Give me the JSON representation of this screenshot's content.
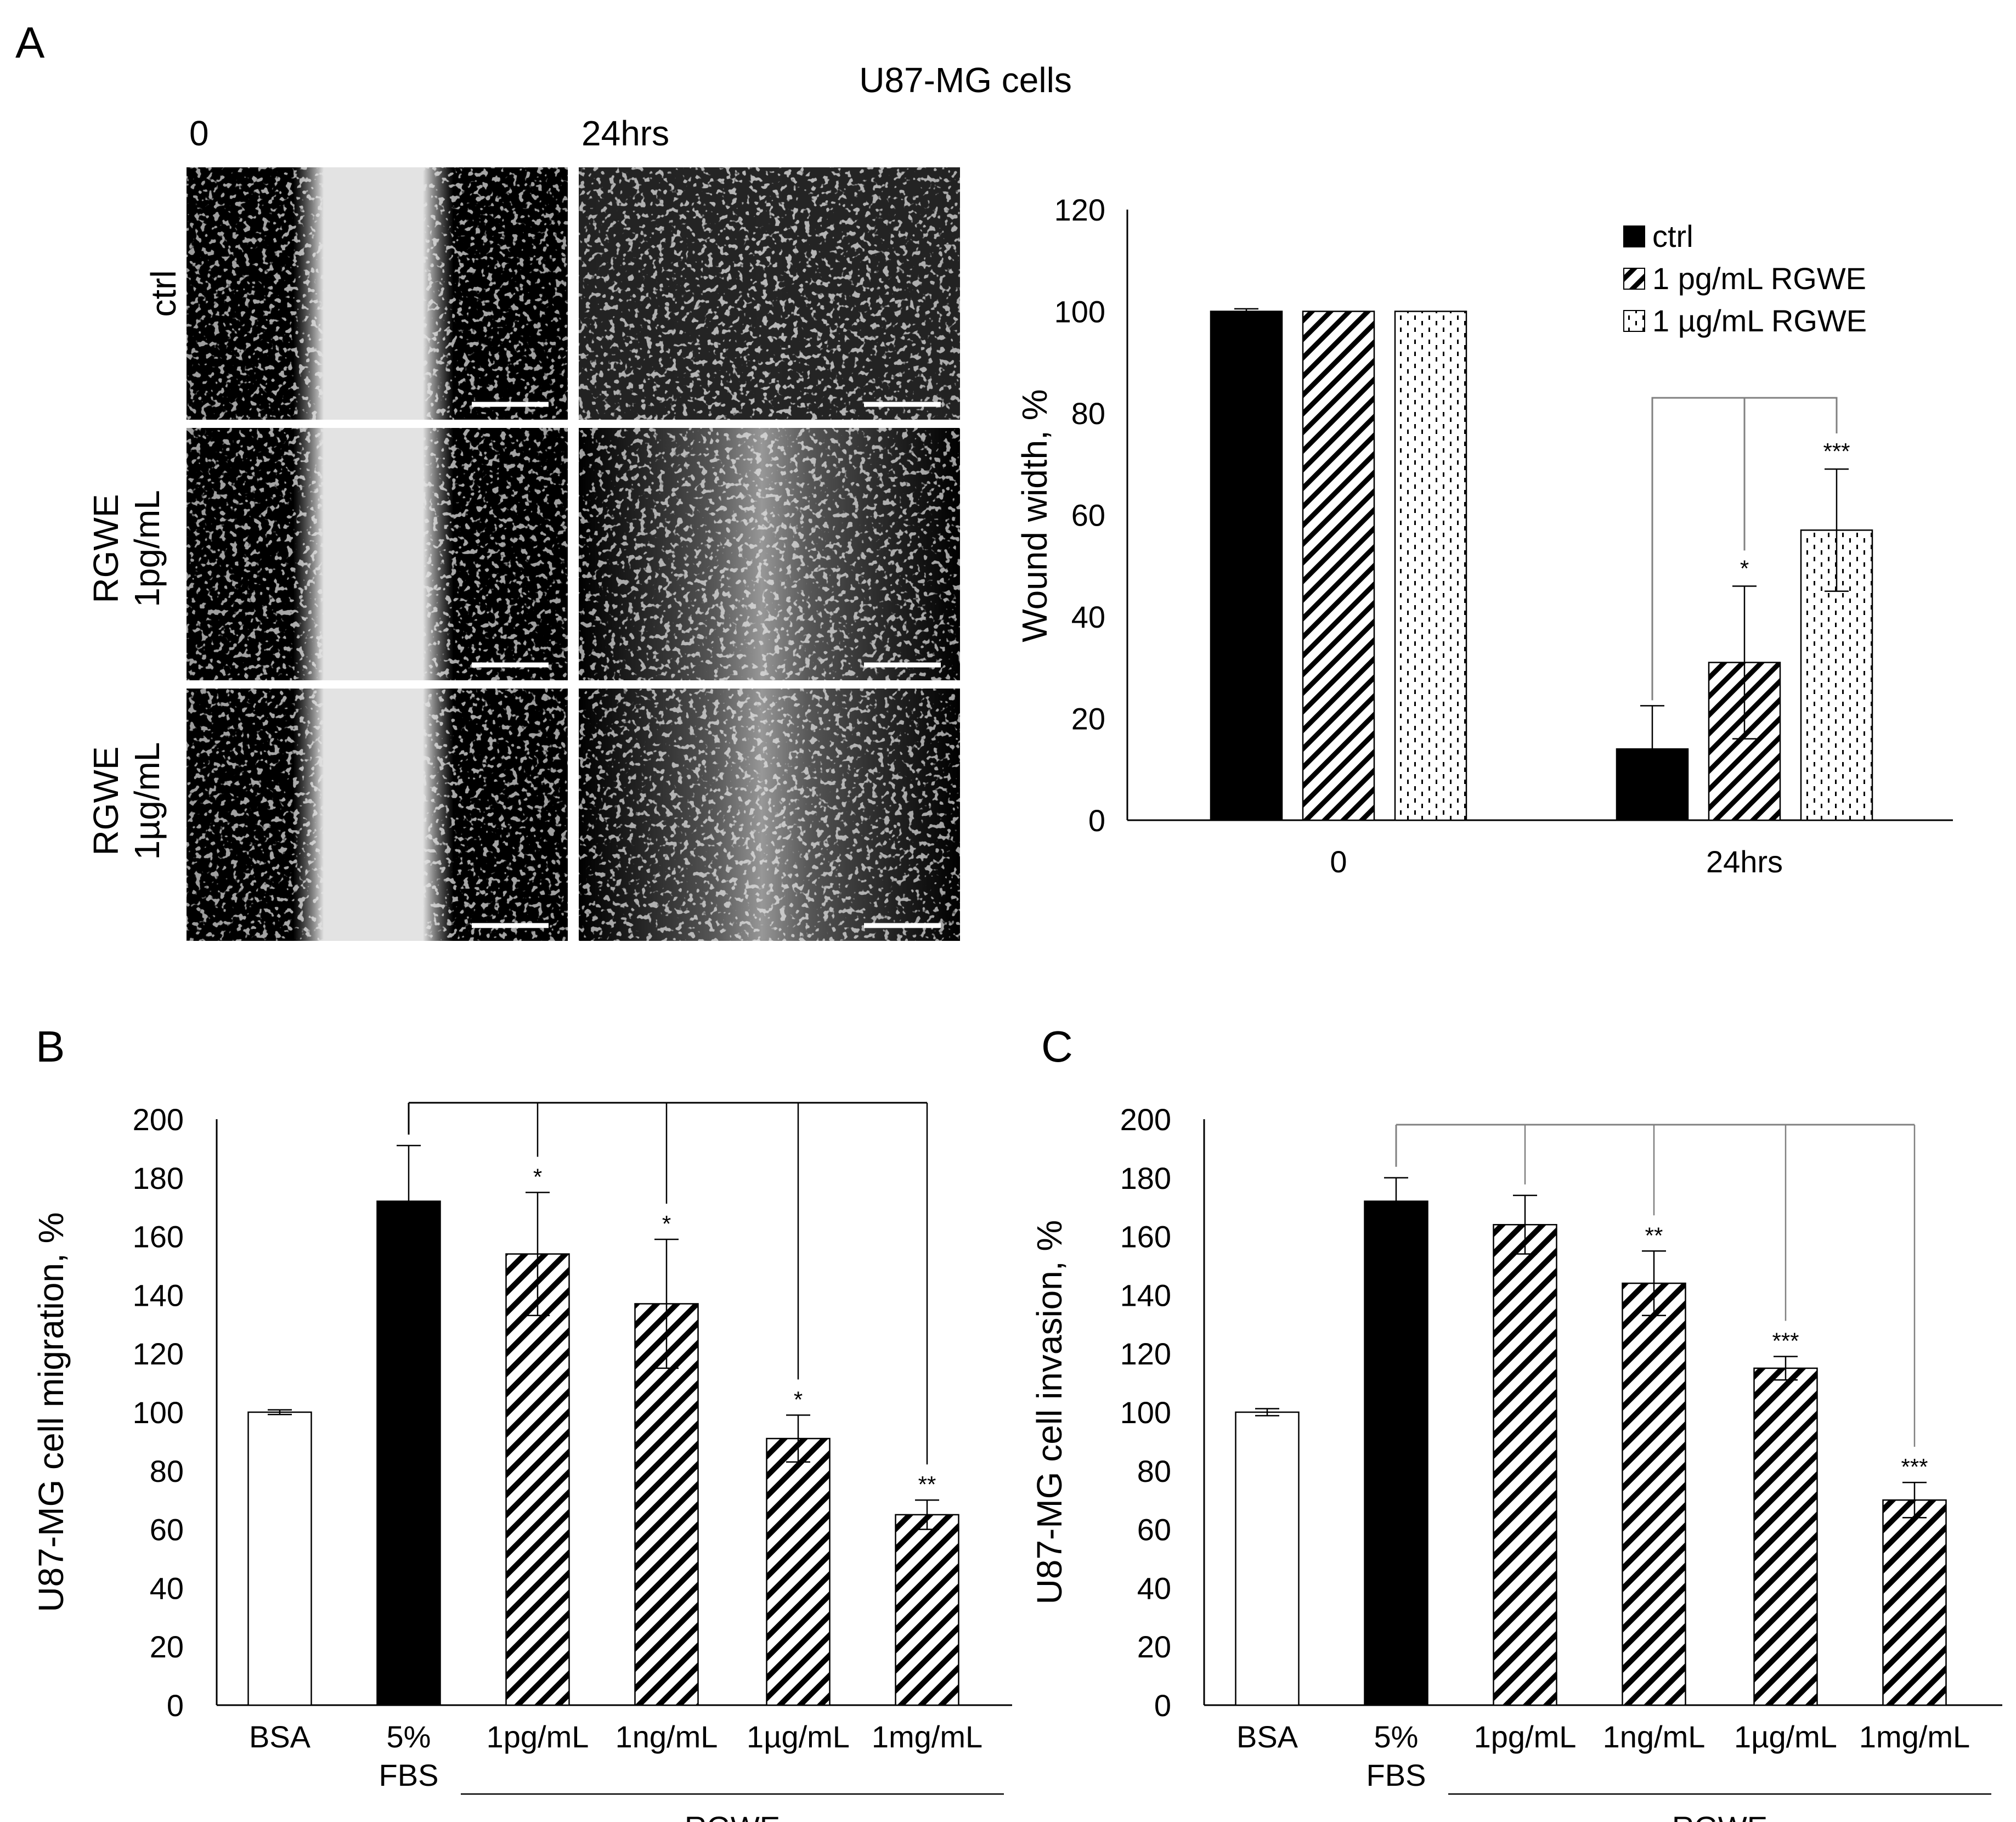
{
  "figure": {
    "title": "U87-MG cells",
    "panel_labels": [
      "A",
      "B",
      "C"
    ],
    "micrograph": {
      "columns": [
        "0",
        "24hrs"
      ],
      "rows": [
        {
          "lines": [
            "ctrl"
          ]
        },
        {
          "lines": [
            "RGWE",
            "1pg/mL"
          ]
        },
        {
          "lines": [
            "RGWE",
            "1µg/mL"
          ]
        }
      ]
    }
  },
  "colors": {
    "black": "#000000",
    "white": "#ffffff",
    "axis": "#000000",
    "bracket": "#808080"
  },
  "chart_data": [
    {
      "id": "A",
      "type": "bar",
      "title": "",
      "xlabel": "",
      "ylabel": "Wound width, %",
      "ylim": [
        0,
        120
      ],
      "yticks": [
        "0",
        "20",
        "40",
        "60",
        "80",
        "100",
        "120"
      ],
      "categories": [
        "0",
        "24hrs"
      ],
      "legend_position": "top-right",
      "series": [
        {
          "name": "ctrl",
          "pattern": "solid",
          "values": [
            100,
            14
          ],
          "errors": [
            0.5,
            8.5
          ],
          "stars": [
            "",
            ""
          ]
        },
        {
          "name": "1 pg/mL RGWE",
          "pattern": "hatch",
          "values": [
            100,
            31
          ],
          "errors": [
            0,
            15
          ],
          "stars": [
            "",
            "*"
          ]
        },
        {
          "name": "1 µg/mL RGWE",
          "pattern": "dots",
          "values": [
            100,
            57
          ],
          "errors": [
            0,
            12
          ],
          "stars": [
            "",
            "***"
          ]
        }
      ]
    },
    {
      "id": "B",
      "type": "bar",
      "title": "",
      "xlabel": "",
      "ylabel": "U87-MG cell migration, %",
      "ylim": [
        0,
        200
      ],
      "yticks": [
        "0",
        "20",
        "40",
        "60",
        "80",
        "100",
        "120",
        "140",
        "160",
        "180",
        "200"
      ],
      "categories": [
        [
          "BSA"
        ],
        [
          "5%",
          "FBS"
        ],
        [
          "1pg/mL"
        ],
        [
          "1ng/mL"
        ],
        [
          "1µg/mL"
        ],
        [
          "1mg/mL"
        ]
      ],
      "group_label": "RGWE",
      "values": [
        100,
        172,
        154,
        137,
        91,
        65
      ],
      "errors": [
        0.8,
        19,
        21,
        22,
        8,
        5
      ],
      "patterns": [
        "white",
        "solid",
        "hatch",
        "hatch",
        "hatch",
        "hatch"
      ],
      "stars": [
        "",
        "",
        "*",
        "*",
        "*",
        "**"
      ]
    },
    {
      "id": "C",
      "type": "bar",
      "title": "",
      "xlabel": "",
      "ylabel": "U87-MG cell invasion, %",
      "ylim": [
        0,
        200
      ],
      "yticks": [
        "0",
        "20",
        "40",
        "60",
        "80",
        "100",
        "120",
        "140",
        "160",
        "180",
        "200"
      ],
      "categories": [
        [
          "BSA"
        ],
        [
          "5%",
          "FBS"
        ],
        [
          "1pg/mL"
        ],
        [
          "1ng/mL"
        ],
        [
          "1µg/mL"
        ],
        [
          "1mg/mL"
        ]
      ],
      "group_label": "RGWE",
      "values": [
        100,
        172,
        164,
        144,
        115,
        70
      ],
      "errors": [
        1.2,
        8,
        10,
        11,
        4,
        6
      ],
      "patterns": [
        "white",
        "solid",
        "hatch",
        "hatch",
        "hatch",
        "hatch"
      ],
      "stars": [
        "",
        "",
        "",
        "**",
        "***",
        "***"
      ]
    }
  ]
}
